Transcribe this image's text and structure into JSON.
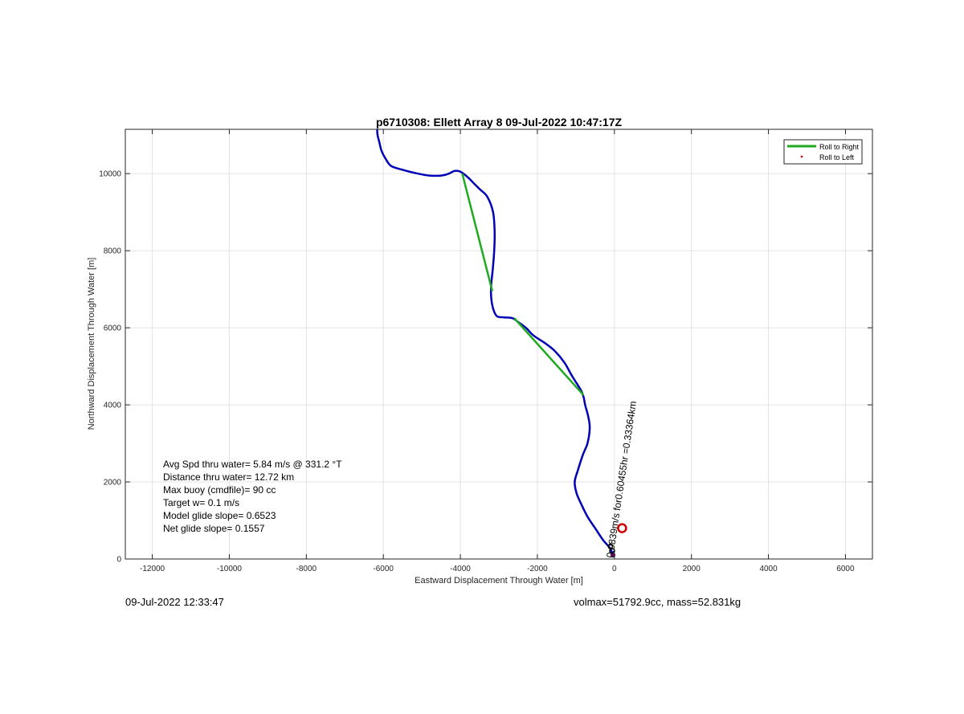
{
  "chart_data": {
    "type": "line",
    "title": "p6710308: Ellett Array 8 09-Jul-2022 10:47:17Z",
    "xlabel": "Eastward Displacement Through Water [m]",
    "ylabel": "Northward Displacement Through Water [m]",
    "xlim": [
      -12700,
      6700
    ],
    "ylim": [
      0,
      11150
    ],
    "xticks": [
      -12000,
      -10000,
      -8000,
      -6000,
      -4000,
      -2000,
      0,
      2000,
      4000,
      6000
    ],
    "yticks": [
      0,
      2000,
      4000,
      6000,
      8000,
      10000
    ],
    "grid": true,
    "legend": {
      "placement": "top-right",
      "entries": [
        {
          "label": "Roll to Right",
          "color": "#1faa1f",
          "marker": "line"
        },
        {
          "label": "Roll to Left",
          "color": "#e00000",
          "marker": "dot"
        }
      ]
    },
    "track": {
      "color": "#0000b4",
      "x": [
        -10,
        -50,
        -130,
        -300,
        -500,
        -700,
        -850,
        -980,
        -1030,
        -950,
        -820,
        -700,
        -640,
        -680,
        -760,
        -800,
        -880,
        -1100,
        -1300,
        -1550,
        -1800,
        -2100,
        -2300,
        -2500,
        -2650,
        -2850,
        -3050,
        -3150,
        -3200,
        -3200,
        -3160,
        -3120,
        -3110,
        -3150,
        -3300,
        -3500,
        -3650,
        -3800,
        -4000,
        -4150,
        -4300,
        -4500,
        -4800,
        -5100,
        -5500,
        -5800,
        -5950,
        -6050,
        -6100,
        -6150,
        -6160
      ],
      "y": [
        50,
        150,
        300,
        500,
        800,
        1100,
        1400,
        1700,
        2000,
        2300,
        2700,
        3000,
        3400,
        3700,
        4000,
        4200,
        4400,
        4750,
        5100,
        5400,
        5600,
        5800,
        6000,
        6150,
        6250,
        6270,
        6300,
        6500,
        6800,
        7100,
        7500,
        8000,
        8500,
        9000,
        9400,
        9600,
        9750,
        9900,
        10050,
        10070,
        10000,
        9950,
        9950,
        10000,
        10100,
        10200,
        10400,
        10600,
        10800,
        11000,
        11150
      ]
    },
    "roll_right_segments": [
      {
        "x": [
          -800,
          -2600
        ],
        "y": [
          4250,
          6250
        ]
      },
      {
        "x": [
          -3170,
          -3950
        ],
        "y": [
          6950,
          10000
        ]
      }
    ],
    "end_marker": {
      "x": 200,
      "y": 800,
      "color": "#cc0000"
    },
    "current_vector_label": "0.0839m/s for0.60455hr =0.33364km",
    "stats": [
      "Avg Spd thru water=  5.84 m/s @ 331.2 °T",
      "Distance thru water= 12.72 km",
      "Max buoy (cmdfile)= 90 cc",
      "Target w= 0.1 m/s",
      "Model glide slope= 0.6523",
      "Net glide slope= 0.1557"
    ]
  },
  "footer": {
    "timestamp": "09-Jul-2022 12:33:47",
    "volume_mass": "volmax=51792.9cc, mass=52.831kg"
  }
}
